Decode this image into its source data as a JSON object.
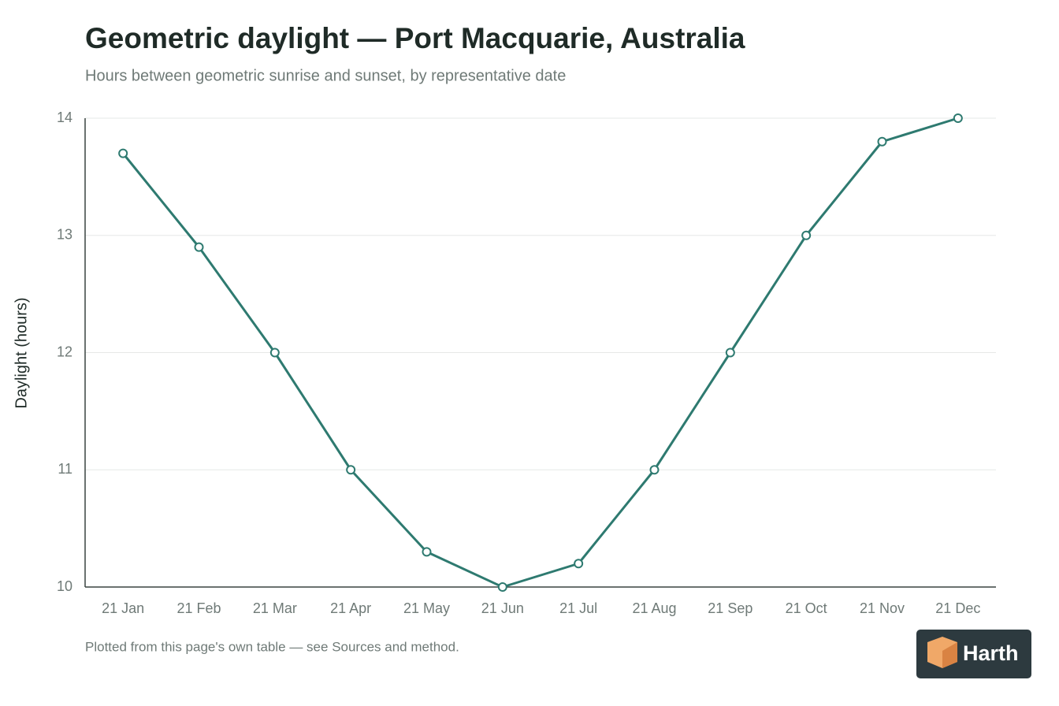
{
  "chart_data": {
    "type": "line",
    "title": "Geometric daylight — Port Macquarie, Australia",
    "subtitle": "Hours between geometric sunrise and sunset, by representative date",
    "y_label": "Daylight (hours)",
    "categories": [
      "21 Jan",
      "21 Feb",
      "21 Mar",
      "21 Apr",
      "21 May",
      "21 Jun",
      "21 Jul",
      "21 Aug",
      "21 Sep",
      "21 Oct",
      "21 Nov",
      "21 Dec"
    ],
    "values": [
      13.7,
      12.9,
      12.0,
      11.0,
      10.3,
      10.0,
      10.2,
      11.0,
      12.0,
      13.0,
      13.8,
      14.0
    ],
    "color": "#2e7a70",
    "ylim": [
      10,
      14
    ],
    "yticks": [
      10,
      11,
      12,
      13,
      14
    ],
    "grid": true,
    "footnote": "Plotted from this page's own table — see Sources and method."
  },
  "logo": "Harth"
}
